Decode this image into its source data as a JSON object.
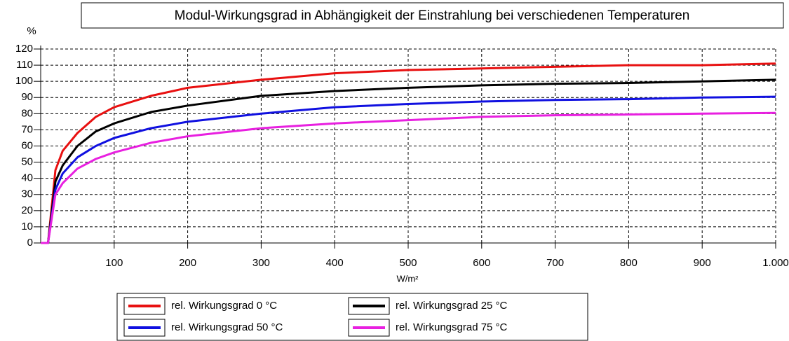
{
  "chart_data": {
    "type": "line",
    "title": "Modul-Wirkungsgrad in Abhängigkeit der Einstrahlung bei verschiedenen Temperaturen",
    "y_label": "%",
    "x_label": "W/m²",
    "x": [
      0,
      10,
      20,
      30,
      50,
      75,
      100,
      150,
      200,
      300,
      400,
      500,
      600,
      700,
      800,
      900,
      1000
    ],
    "series": [
      {
        "name": "rel. Wirkungsgrad 0 °C",
        "color": "#e81010",
        "values": [
          0,
          0,
          45,
          57,
          68,
          78,
          84,
          91,
          96,
          101,
          105,
          107,
          108,
          109,
          110,
          110,
          111
        ]
      },
      {
        "name": "rel. Wirkungsgrad 25 °C",
        "color": "#000000",
        "values": [
          0,
          0,
          38,
          48,
          60,
          69,
          74,
          81,
          85,
          91,
          94,
          96,
          97.5,
          98.5,
          99,
          100,
          101
        ]
      },
      {
        "name": "rel. Wirkungsgrad 50 °C",
        "color": "#1010e0",
        "values": [
          0,
          0,
          33,
          43,
          53,
          60,
          65,
          71,
          75,
          80,
          84,
          86,
          87.5,
          88.5,
          89,
          90,
          90.5
        ]
      },
      {
        "name": "rel. Wirkungsgrad 75 °C",
        "color": "#e820e0",
        "values": [
          0,
          0,
          30,
          37,
          46,
          52,
          56,
          62,
          66,
          71,
          74,
          76,
          78,
          79,
          79.5,
          80,
          80.5
        ]
      }
    ],
    "xlim": [
      0,
      1000
    ],
    "ylim": [
      0,
      120
    ],
    "xticks": [
      100,
      200,
      300,
      400,
      500,
      600,
      700,
      800,
      900,
      {
        "value": 1000,
        "label": "1.000"
      }
    ],
    "yticks": [
      0,
      10,
      20,
      30,
      40,
      50,
      60,
      70,
      80,
      90,
      100,
      110,
      120
    ],
    "grid": true
  }
}
